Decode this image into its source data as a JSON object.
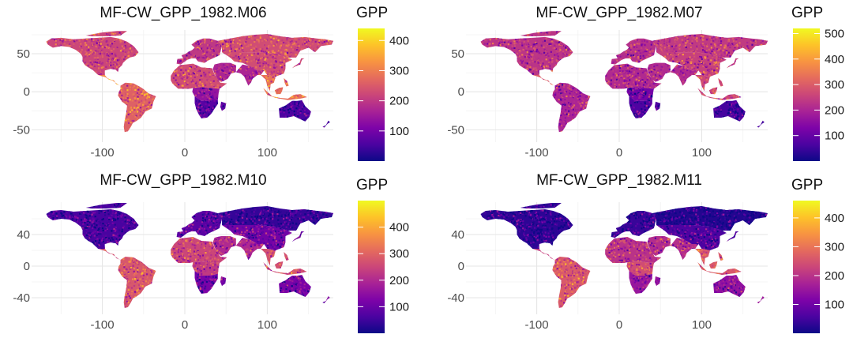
{
  "chart_data": [
    {
      "type": "heatmap",
      "title": "MF-CW_GPP_1982.M06",
      "xlabel": "",
      "ylabel": "",
      "xlim": [
        -180,
        180
      ],
      "ylim": [
        -60,
        75
      ],
      "x_ticks": [
        -100,
        0,
        100
      ],
      "x_tick_labels": [
        "-100",
        "0",
        "100"
      ],
      "y_ticks": [
        -50,
        0,
        50
      ],
      "y_tick_labels": [
        "-50",
        "0",
        "50"
      ],
      "colorbar": {
        "title": "GPP",
        "range": [
          0,
          440
        ],
        "ticks": [
          100,
          200,
          300,
          400
        ],
        "tick_labels": [
          "100",
          "200",
          "300",
          "400"
        ],
        "colormap": "plasma"
      },
      "region_levels": {
        "north_america": 220,
        "central_america": 320,
        "south_america": 260,
        "europe": 200,
        "siberia": 230,
        "east_asia": 230,
        "south_asia": 170,
        "se_asia": 280,
        "africa_west": 230,
        "africa_central": 140,
        "africa_south": 70,
        "australia": 55,
        "new_zealand": 60
      }
    },
    {
      "type": "heatmap",
      "title": "MF-CW_GPP_1982.M07",
      "xlabel": "",
      "ylabel": "",
      "xlim": [
        -180,
        180
      ],
      "ylim": [
        -60,
        75
      ],
      "x_ticks": [
        -100,
        0,
        100
      ],
      "x_tick_labels": [
        "-100",
        "0",
        "100"
      ],
      "y_ticks": [
        -50,
        0,
        50
      ],
      "y_tick_labels": [
        "-50",
        "0",
        "50"
      ],
      "colorbar": {
        "title": "GPP",
        "range": [
          0,
          520
        ],
        "ticks": [
          100,
          200,
          300,
          400,
          500
        ],
        "tick_labels": [
          "100",
          "200",
          "300",
          "400",
          "500"
        ],
        "colormap": "plasma"
      },
      "region_levels": {
        "north_america": 230,
        "central_america": 300,
        "south_america": 200,
        "europe": 220,
        "siberia": 240,
        "east_asia": 250,
        "south_asia": 210,
        "se_asia": 260,
        "africa_west": 210,
        "africa_central": 120,
        "africa_south": 70,
        "australia": 60,
        "new_zealand": 70
      }
    },
    {
      "type": "heatmap",
      "title": "MF-CW_GPP_1982.M10",
      "xlabel": "",
      "ylabel": "",
      "xlim": [
        -180,
        180
      ],
      "ylim": [
        -55,
        75
      ],
      "x_ticks": [
        -100,
        0,
        100
      ],
      "x_tick_labels": [
        "-100",
        "0",
        "100"
      ],
      "y_ticks": [
        -40,
        0,
        40
      ],
      "y_tick_labels": [
        "-40",
        "0",
        "40"
      ],
      "colorbar": {
        "title": "GPP",
        "range": [
          0,
          500
        ],
        "ticks": [
          100,
          200,
          300,
          400
        ],
        "tick_labels": [
          "100",
          "200",
          "300",
          "400"
        ],
        "colormap": "plasma"
      },
      "region_levels": {
        "north_america": 60,
        "central_america": 250,
        "south_america": 280,
        "europe": 80,
        "siberia": 40,
        "east_asia": 110,
        "south_asia": 200,
        "se_asia": 270,
        "africa_west": 250,
        "africa_central": 230,
        "africa_south": 120,
        "australia": 120,
        "new_zealand": 140
      }
    },
    {
      "type": "heatmap",
      "title": "MF-CW_GPP_1982.M11",
      "xlabel": "",
      "ylabel": "",
      "xlim": [
        -180,
        180
      ],
      "ylim": [
        -55,
        75
      ],
      "x_ticks": [
        -100,
        0,
        100
      ],
      "x_tick_labels": [
        "-100",
        "0",
        "100"
      ],
      "y_ticks": [
        -40,
        0,
        40
      ],
      "y_tick_labels": [
        "-40",
        "0",
        "40"
      ],
      "colorbar": {
        "title": "GPP",
        "range": [
          0,
          460
        ],
        "ticks": [
          100,
          200,
          300,
          400
        ],
        "tick_labels": [
          "100",
          "200",
          "300",
          "400"
        ],
        "colormap": "plasma"
      },
      "region_levels": {
        "north_america": 30,
        "central_america": 220,
        "south_america": 260,
        "europe": 40,
        "siberia": 20,
        "east_asia": 60,
        "south_asia": 190,
        "se_asia": 260,
        "africa_west": 200,
        "africa_central": 240,
        "africa_south": 150,
        "australia": 140,
        "new_zealand": 160
      }
    }
  ]
}
